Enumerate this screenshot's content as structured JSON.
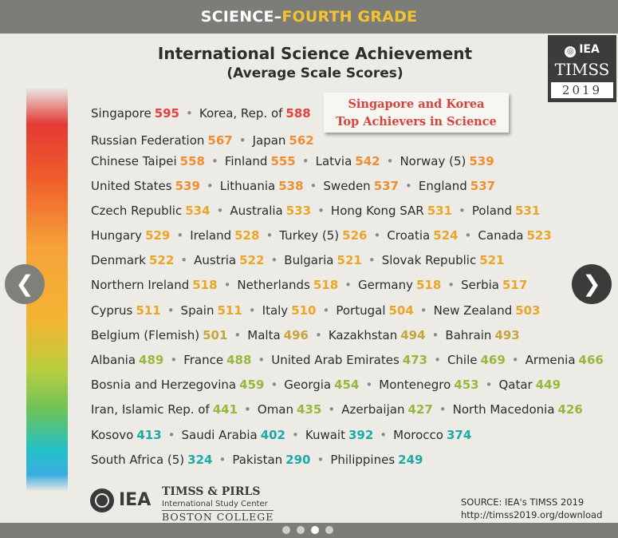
{
  "header": {
    "title_part1": "SCIENCE–",
    "title_part2": "FOURTH GRADE"
  },
  "title": {
    "line1": "International Science Achievement",
    "line2": "(Average Scale Scores)"
  },
  "badge": {
    "org": "IEA",
    "program": "TIMSS",
    "year": "2019"
  },
  "callout": {
    "line1": "Singapore and Korea",
    "line2": "Top Achievers in Science"
  },
  "colors": {
    "red": "#e2433a",
    "orange": "#ef8e32",
    "amber": "#e9a627",
    "khaki": "#c8a43c",
    "green": "#97b83d",
    "teal": "#1fa9a6"
  },
  "rows": [
    [
      {
        "name": "Singapore",
        "score": "595",
        "color": "red"
      },
      {
        "name": "Korea, Rep. of",
        "score": "588",
        "color": "red"
      }
    ],
    [
      {
        "name": "Russian Federation",
        "score": "567",
        "color": "orange"
      },
      {
        "name": "Japan",
        "score": "562",
        "color": "orange"
      }
    ],
    [
      {
        "name": "Chinese Taipei",
        "score": "558",
        "color": "orange"
      },
      {
        "name": "Finland",
        "score": "555",
        "color": "orange"
      },
      {
        "name": "Latvia",
        "score": "542",
        "color": "orange"
      },
      {
        "name": "Norway (5)",
        "score": "539",
        "color": "orange"
      }
    ],
    [
      {
        "name": "United States",
        "score": "539",
        "color": "orange"
      },
      {
        "name": "Lithuania",
        "score": "538",
        "color": "orange"
      },
      {
        "name": "Sweden",
        "score": "537",
        "color": "orange"
      },
      {
        "name": "England",
        "score": "537",
        "color": "orange"
      }
    ],
    [
      {
        "name": "Czech Republic",
        "score": "534",
        "color": "amber"
      },
      {
        "name": "Australia",
        "score": "533",
        "color": "amber"
      },
      {
        "name": "Hong Kong SAR",
        "score": "531",
        "color": "amber"
      },
      {
        "name": "Poland",
        "score": "531",
        "color": "amber"
      }
    ],
    [
      {
        "name": "Hungary",
        "score": "529",
        "color": "amber"
      },
      {
        "name": "Ireland",
        "score": "528",
        "color": "amber"
      },
      {
        "name": "Turkey (5)",
        "score": "526",
        "color": "amber"
      },
      {
        "name": "Croatia",
        "score": "524",
        "color": "amber"
      },
      {
        "name": "Canada",
        "score": "523",
        "color": "amber"
      }
    ],
    [
      {
        "name": "Denmark",
        "score": "522",
        "color": "amber"
      },
      {
        "name": "Austria",
        "score": "522",
        "color": "amber"
      },
      {
        "name": "Bulgaria",
        "score": "521",
        "color": "amber"
      },
      {
        "name": "Slovak Republic",
        "score": "521",
        "color": "amber"
      }
    ],
    [
      {
        "name": "Northern Ireland",
        "score": "518",
        "color": "amber"
      },
      {
        "name": "Netherlands",
        "score": "518",
        "color": "amber"
      },
      {
        "name": "Germany",
        "score": "518",
        "color": "amber"
      },
      {
        "name": "Serbia",
        "score": "517",
        "color": "amber"
      }
    ],
    [
      {
        "name": "Cyprus",
        "score": "511",
        "color": "amber"
      },
      {
        "name": "Spain",
        "score": "511",
        "color": "amber"
      },
      {
        "name": "Italy",
        "score": "510",
        "color": "amber"
      },
      {
        "name": "Portugal",
        "score": "504",
        "color": "amber"
      },
      {
        "name": "New Zealand",
        "score": "503",
        "color": "amber"
      }
    ],
    [
      {
        "name": "Belgium (Flemish)",
        "score": "501",
        "color": "khaki"
      },
      {
        "name": "Malta",
        "score": "496",
        "color": "khaki"
      },
      {
        "name": "Kazakhstan",
        "score": "494",
        "color": "khaki"
      },
      {
        "name": "Bahrain",
        "score": "493",
        "color": "khaki"
      }
    ],
    [
      {
        "name": "Albania",
        "score": "489",
        "color": "green"
      },
      {
        "name": "France",
        "score": "488",
        "color": "green"
      },
      {
        "name": "United Arab Emirates",
        "score": "473",
        "color": "green"
      },
      {
        "name": "Chile",
        "score": "469",
        "color": "green"
      },
      {
        "name": "Armenia",
        "score": "466",
        "color": "green"
      }
    ],
    [
      {
        "name": "Bosnia and Herzegovina",
        "score": "459",
        "color": "green"
      },
      {
        "name": "Georgia",
        "score": "454",
        "color": "green"
      },
      {
        "name": "Montenegro",
        "score": "453",
        "color": "green"
      },
      {
        "name": "Qatar",
        "score": "449",
        "color": "green"
      }
    ],
    [
      {
        "name": "Iran, Islamic Rep. of",
        "score": "441",
        "color": "green"
      },
      {
        "name": "Oman",
        "score": "435",
        "color": "green"
      },
      {
        "name": "Azerbaijan",
        "score": "427",
        "color": "green"
      },
      {
        "name": "North Macedonia",
        "score": "426",
        "color": "green"
      }
    ],
    [
      {
        "name": "Kosovo",
        "score": "413",
        "color": "teal"
      },
      {
        "name": "Saudi Arabia",
        "score": "402",
        "color": "teal"
      },
      {
        "name": "Kuwait",
        "score": "392",
        "color": "teal"
      },
      {
        "name": "Morocco",
        "score": "374",
        "color": "teal"
      }
    ],
    [
      {
        "name": "South Africa (5)",
        "score": "324",
        "color": "teal"
      },
      {
        "name": "Pakistan",
        "score": "290",
        "color": "teal"
      },
      {
        "name": "Philippines",
        "score": "249",
        "color": "teal"
      }
    ]
  ],
  "footer": {
    "logo_iea": "IEA",
    "logo_line1": "TIMSS & PIRLS",
    "logo_line2": "International Study Center",
    "logo_line3": "BOSTON COLLEGE",
    "source_line1": "SOURCE: IEA's TIMSS 2019",
    "source_line2": "http://timss2019.org/download"
  },
  "carousel": {
    "dot_count": 4,
    "active_dot": 3
  }
}
